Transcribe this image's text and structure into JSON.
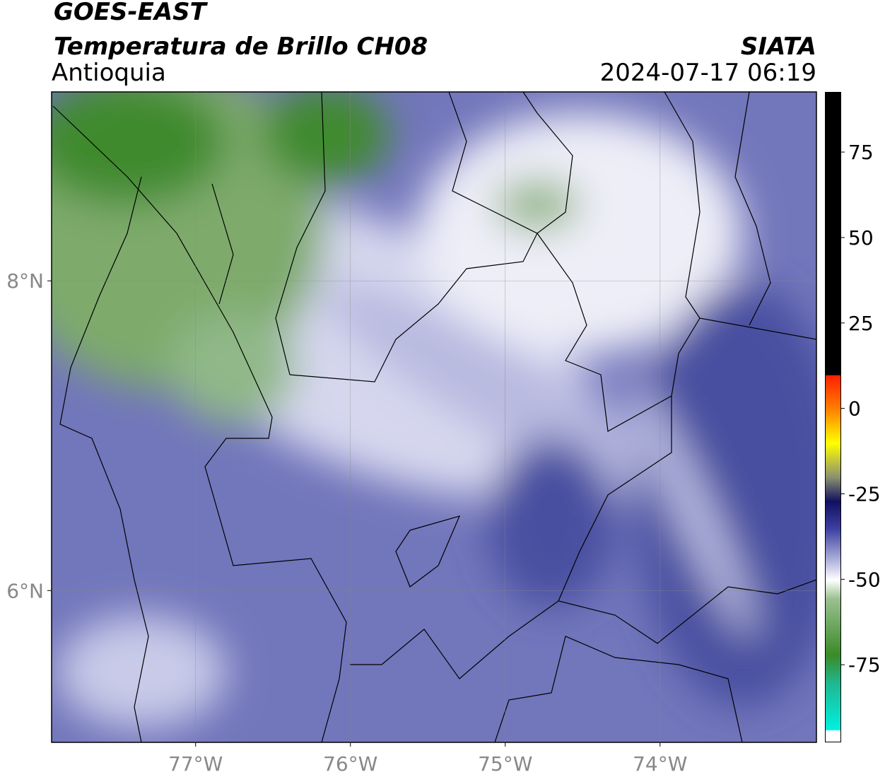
{
  "header": {
    "satellite": "GOES-EAST",
    "product": "Temperatura de Brillo CH08",
    "region": "Antioquia",
    "source": "SIATA",
    "datetime": "2024-07-17 06:19"
  },
  "map": {
    "xlim": [
      -77.93,
      -72.99
    ],
    "ylim": [
      5.02,
      9.22
    ],
    "xticks": [
      {
        "value": -77,
        "label": "77°W"
      },
      {
        "value": -76,
        "label": "76°W"
      },
      {
        "value": -75,
        "label": "75°W"
      },
      {
        "value": -74,
        "label": "74°W"
      }
    ],
    "yticks": [
      {
        "value": 8,
        "label": "8°N"
      },
      {
        "value": 6,
        "label": "6°N"
      }
    ],
    "grid": true
  },
  "colorbar": {
    "lim": [
      -97.3,
      92.6
    ],
    "ticks": [
      -75,
      -50,
      -25,
      0,
      25,
      50,
      75
    ]
  }
}
